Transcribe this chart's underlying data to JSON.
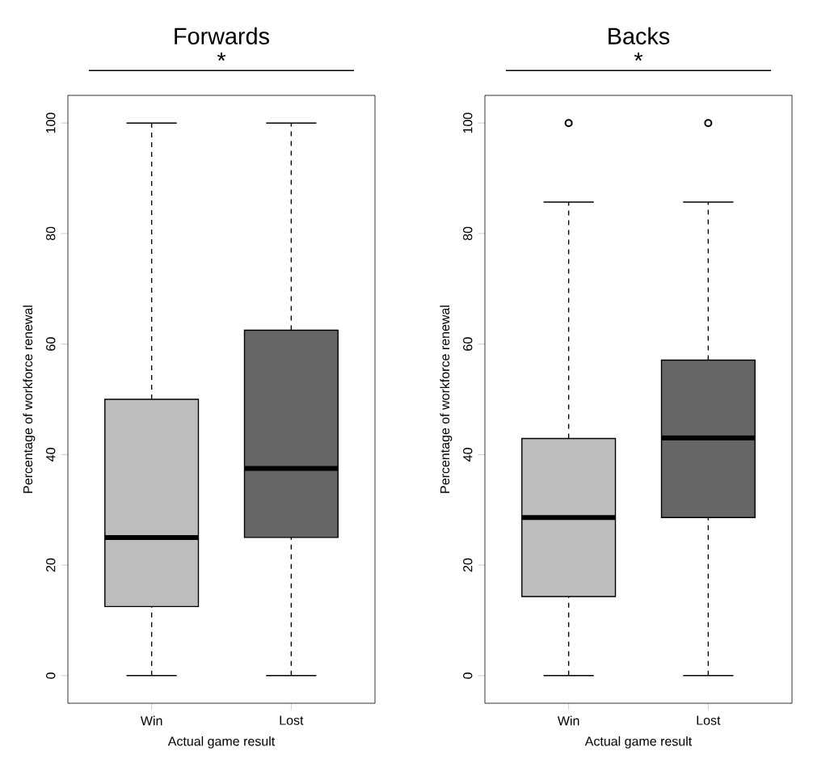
{
  "chart_data": [
    {
      "type": "box",
      "title": "Forwards",
      "xlabel": "Actual game result",
      "ylabel": "Percentage of workforce renewal",
      "categories": [
        "Win",
        "Lost"
      ],
      "colors": [
        "#bdbdbd",
        "#666666"
      ],
      "ylim": [
        -5,
        105
      ],
      "yticks": [
        0,
        20,
        40,
        60,
        80,
        100
      ],
      "annotations": [
        "*"
      ],
      "boxes": [
        {
          "low": 0,
          "q1": 12.5,
          "median": 25,
          "q3": 50,
          "high": 100
        },
        {
          "low": 0,
          "q1": 25,
          "median": 37.5,
          "q3": 62.5,
          "high": 100
        }
      ]
    },
    {
      "type": "box",
      "title": "Backs",
      "xlabel": "Actual game result",
      "ylabel": "Percentage of workforce renewal",
      "categories": [
        "Win",
        "Lost"
      ],
      "colors": [
        "#bdbdbd",
        "#666666"
      ],
      "ylim": [
        -5,
        105
      ],
      "yticks": [
        0,
        20,
        40,
        60,
        80,
        100
      ],
      "annotations": [
        "*"
      ],
      "boxes": [
        {
          "low": 0,
          "q1": 14.3,
          "median": 28.6,
          "q3": 42.9,
          "high": 85.7,
          "outliers": [
            100
          ]
        },
        {
          "low": 0,
          "q1": 28.6,
          "median": 43,
          "q3": 57.1,
          "high": 85.7,
          "outliers": [
            100
          ]
        }
      ]
    }
  ]
}
